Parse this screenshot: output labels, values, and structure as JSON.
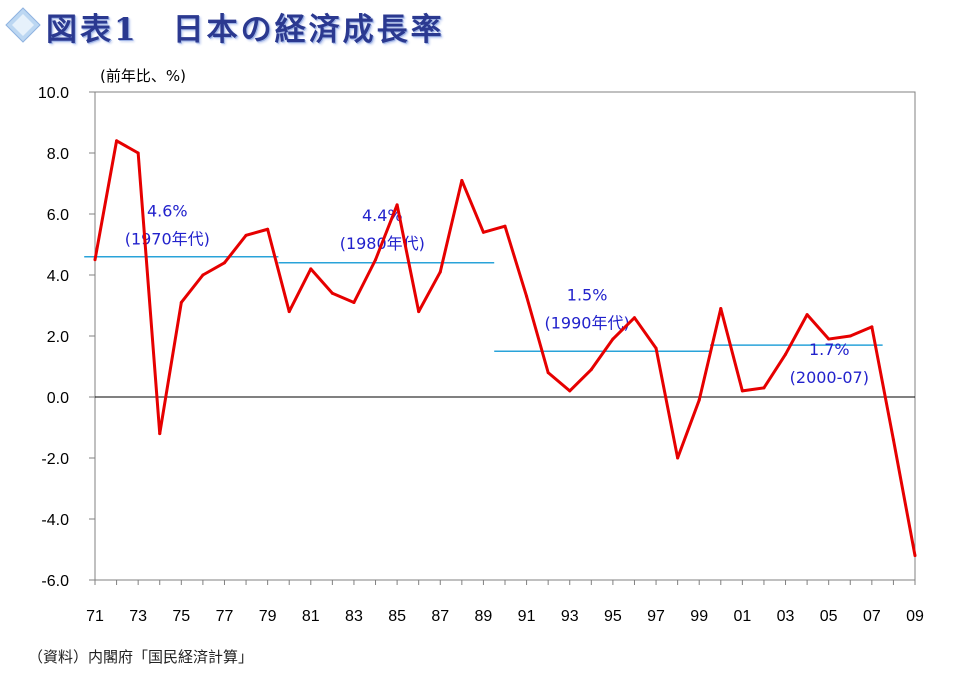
{
  "header": {
    "title": "図表1　日本の経済成長率",
    "icon": "diamond-icon"
  },
  "source_note": "（資料）内閣府「国民経済計算」",
  "colors": {
    "series": "#e60000",
    "average": "#29a3d9",
    "annotation": "#2222cc",
    "title": "#2b3990"
  },
  "chart_data": {
    "type": "line",
    "title": "",
    "xlabel": "",
    "ylabel": "(前年比、%)",
    "ylim": [
      -6.0,
      10.0
    ],
    "yticks": [
      "10.0",
      "8.0",
      "6.0",
      "4.0",
      "2.0",
      "0.0",
      "-2.0",
      "-4.0",
      "-6.0"
    ],
    "xticks": [
      "71",
      "73",
      "75",
      "77",
      "79",
      "81",
      "83",
      "85",
      "87",
      "89",
      "91",
      "93",
      "95",
      "97",
      "99",
      "01",
      "03",
      "05",
      "07",
      "09"
    ],
    "grid": false,
    "zero_line": true,
    "series": [
      {
        "x": [
          1971,
          1972,
          1973,
          1974,
          1975,
          1976,
          1977,
          1978,
          1979,
          1980,
          1981,
          1982,
          1983,
          1984,
          1985,
          1986,
          1987,
          1988,
          1989,
          1990,
          1991,
          1992,
          1993,
          1994,
          1995,
          1996,
          1997,
          1998,
          1999,
          2000,
          2001,
          2002,
          2003,
          2004,
          2005,
          2006,
          2007,
          2008,
          2009
        ],
        "values": [
          4.5,
          8.4,
          8.0,
          -1.2,
          3.1,
          4.0,
          4.4,
          5.3,
          5.5,
          2.8,
          4.2,
          3.4,
          3.1,
          4.5,
          6.3,
          2.8,
          4.1,
          7.1,
          5.4,
          5.6,
          3.3,
          0.8,
          0.2,
          0.9,
          1.9,
          2.6,
          1.6,
          -2.0,
          -0.1,
          2.9,
          0.2,
          0.3,
          1.4,
          2.7,
          1.9,
          2.0,
          2.3,
          -1.4,
          -5.2
        ]
      }
    ],
    "averages": [
      {
        "value": 4.6,
        "x_start": 1971,
        "x_end": 1979,
        "label": "4.6%",
        "period": "(1970年代)"
      },
      {
        "value": 4.4,
        "x_start": 1980,
        "x_end": 1989,
        "label": "4.4%",
        "period": "(1980年代)"
      },
      {
        "value": 1.5,
        "x_start": 1990,
        "x_end": 1999,
        "label": "1.5%",
        "period": "(1990年代)"
      },
      {
        "value": 1.7,
        "x_start": 2000,
        "x_end": 2007,
        "label": "1.7%",
        "period": "(2000-07)"
      }
    ]
  }
}
